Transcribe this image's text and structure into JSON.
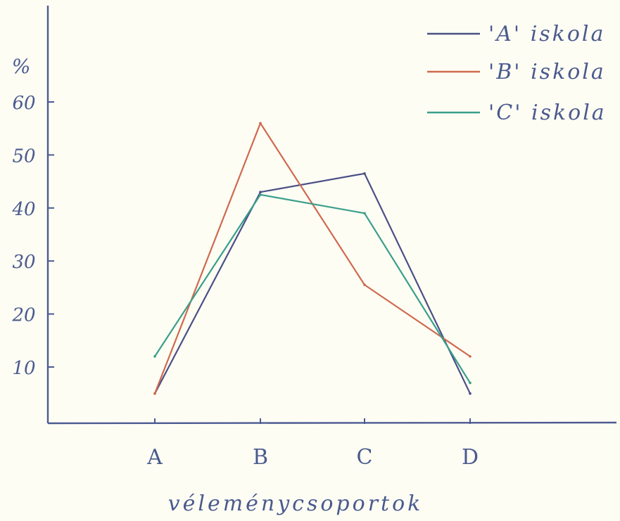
{
  "chart_data": {
    "type": "line",
    "categories": [
      "A",
      "B",
      "C",
      "D"
    ],
    "series": [
      {
        "name": "'A' iskola",
        "values": [
          5,
          43,
          46.5,
          5
        ],
        "color": "#4a4f86"
      },
      {
        "name": "'B' iskola",
        "values": [
          5,
          56,
          25.5,
          12
        ],
        "color": "#cf6a4e"
      },
      {
        "name": "'C' iskola",
        "values": [
          12,
          42.5,
          39,
          7
        ],
        "color": "#3a9e8a"
      }
    ],
    "title": "",
    "xlabel": "véleménycsoportok",
    "ylabel": "%",
    "ylim": [
      0,
      70
    ],
    "yticks": [
      10,
      20,
      30,
      40,
      50,
      60
    ],
    "grid": false,
    "legend_position": "top-right"
  }
}
